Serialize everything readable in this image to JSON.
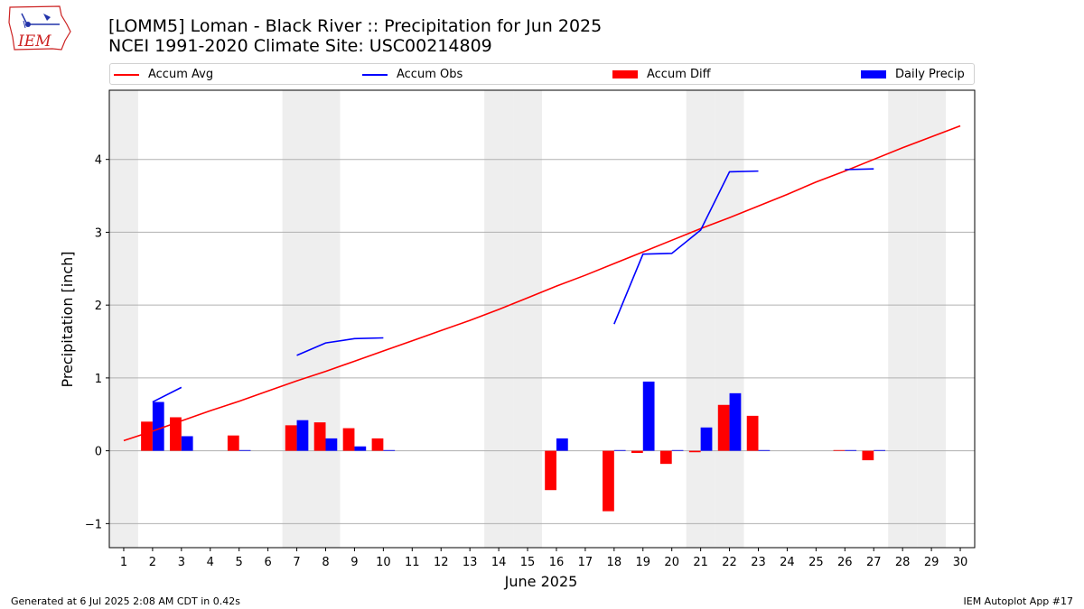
{
  "logo": {
    "icon": "iem-logo-icon",
    "text": "IEM"
  },
  "header": {
    "title_line1": "[LOMM5] Loman - Black River :: Precipitation for Jun 2025",
    "title_line2": "NCEI 1991-2020 Climate Site: USC00214809"
  },
  "legend": {
    "accum_avg": "Accum Avg",
    "accum_obs": "Accum Obs",
    "accum_diff": "Accum Diff",
    "daily_precip": "Daily Precip"
  },
  "footer": {
    "left": "Generated at 6 Jul 2025 2:08 AM CDT in 0.42s",
    "right": "IEM Autoplot App #17"
  },
  "colors": {
    "avg": "#ff0000",
    "obs": "#0000ff",
    "diff": "#ff0000",
    "daily": "#0000ff",
    "weekend": "#eeeeee",
    "grid": "#b0b0b0"
  },
  "chart_data": {
    "type": "bar",
    "xlabel": "June 2025",
    "ylabel": "Precipitation [inch]",
    "x": [
      1,
      2,
      3,
      4,
      5,
      6,
      7,
      8,
      9,
      10,
      11,
      12,
      13,
      14,
      15,
      16,
      17,
      18,
      19,
      20,
      21,
      22,
      23,
      24,
      25,
      26,
      27,
      28,
      29,
      30
    ],
    "xlim": [
      0.5,
      30.5
    ],
    "ylim": [
      -1.33,
      4.95
    ],
    "yticks": [
      -1,
      0,
      1,
      2,
      3,
      4
    ],
    "grid": "horizontal",
    "legend_position": "top",
    "weekend_days": [
      1,
      7,
      8,
      14,
      15,
      21,
      22,
      28,
      29
    ],
    "series": [
      {
        "name": "Accum Avg",
        "kind": "line",
        "values": [
          0.14,
          0.27,
          0.41,
          0.55,
          0.68,
          0.82,
          0.96,
          1.09,
          1.23,
          1.37,
          1.51,
          1.65,
          1.79,
          1.94,
          2.1,
          2.26,
          2.41,
          2.57,
          2.73,
          2.89,
          3.05,
          3.2,
          3.36,
          3.52,
          3.69,
          3.84,
          4.0,
          4.16,
          4.31,
          4.46
        ]
      },
      {
        "name": "Accum Obs",
        "kind": "line",
        "segments": [
          {
            "x": [
              2,
              3
            ],
            "y": [
              0.67,
              0.87
            ]
          },
          {
            "x": [
              7,
              8,
              9,
              10
            ],
            "y": [
              1.31,
              1.48,
              1.54,
              1.55
            ]
          },
          {
            "x": [
              18,
              19,
              20,
              21,
              22,
              23
            ],
            "y": [
              1.74,
              2.7,
              2.71,
              3.03,
              3.83,
              3.84
            ]
          },
          {
            "x": [
              26,
              27
            ],
            "y": [
              3.86,
              3.87
            ]
          }
        ]
      },
      {
        "name": "Accum Diff",
        "kind": "bar",
        "values": [
          null,
          0.4,
          0.46,
          null,
          0.21,
          null,
          0.35,
          0.39,
          0.31,
          0.17,
          null,
          null,
          null,
          null,
          null,
          -0.54,
          null,
          -0.83,
          -0.03,
          -0.18,
          -0.02,
          0.63,
          0.48,
          null,
          null,
          0.01,
          -0.13,
          null,
          null,
          null
        ]
      },
      {
        "name": "Daily Precip",
        "kind": "bar",
        "values": [
          null,
          0.67,
          0.2,
          null,
          0.01,
          null,
          0.42,
          0.17,
          0.06,
          0.01,
          null,
          null,
          null,
          null,
          null,
          0.17,
          null,
          0.01,
          0.95,
          0.01,
          0.32,
          0.79,
          0.01,
          null,
          null,
          0.01,
          0.01,
          null,
          null,
          null
        ]
      }
    ]
  }
}
